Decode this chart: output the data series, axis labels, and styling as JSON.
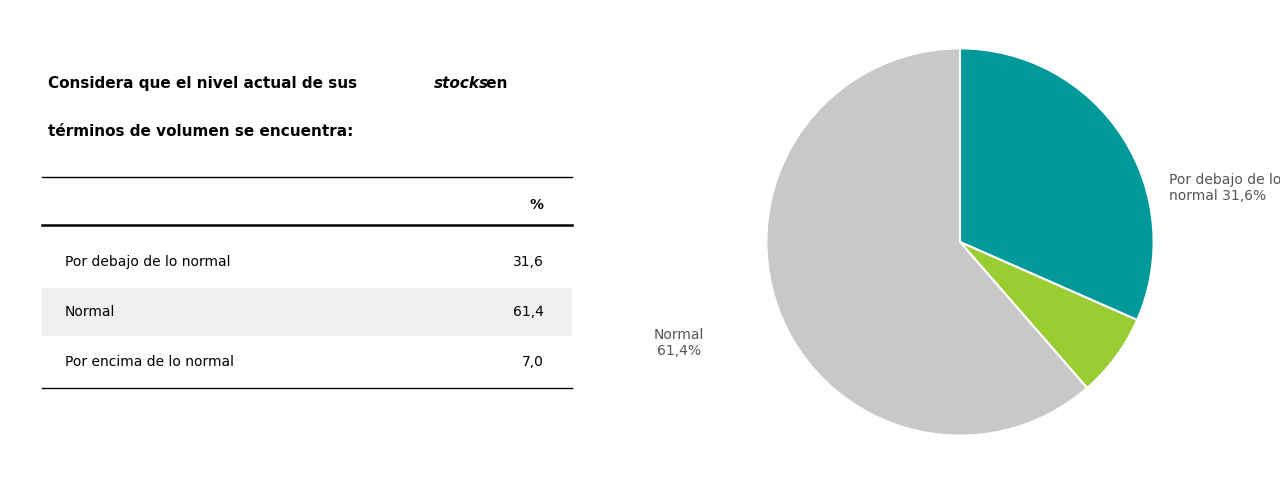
{
  "title_line1_normal": "Considera que el nivel actual de sus ",
  "title_line1_italic": "stocks",
  "title_line1_end": " en",
  "title_line2": "términos de volumen se encuentra:",
  "table_header": "%",
  "rows": [
    {
      "label": "Por debajo de lo normal",
      "value": "31,6"
    },
    {
      "label": "Normal",
      "value": "61,4"
    },
    {
      "label": "Por encima de lo normal",
      "value": "7,0"
    }
  ],
  "pie_values": [
    31.6,
    7.0,
    61.4
  ],
  "pie_colors": [
    "#009999",
    "#9acd32",
    "#c8c8c8"
  ],
  "background_color": "#ffffff",
  "row_alt_color": "#f0f0f0",
  "font_size_title": 11,
  "font_size_table": 10,
  "font_size_pie_label": 10,
  "label_color": "#555555"
}
